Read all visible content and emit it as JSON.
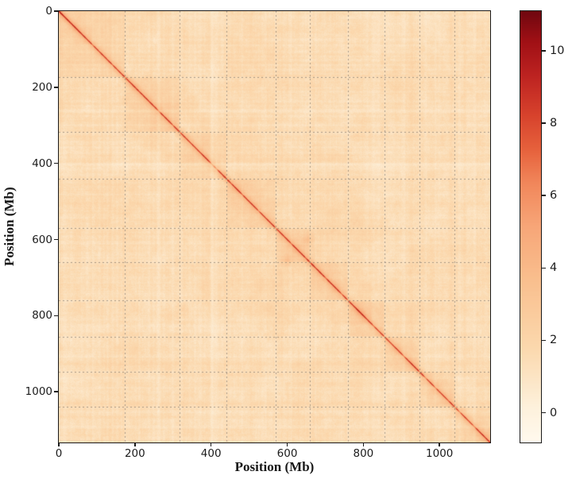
{
  "page": {
    "background": "#ffffff"
  },
  "chart_data": {
    "type": "heatmap",
    "title": "",
    "xlabel": "Position (Mb)",
    "ylabel": "Position (Mb)",
    "x_ticks": [
      0,
      200,
      400,
      600,
      800,
      1000
    ],
    "x_tick_labels": [
      "0",
      "200",
      "400",
      "600",
      "800",
      "1000"
    ],
    "y_ticks": [
      0,
      200,
      400,
      600,
      800,
      1000
    ],
    "y_tick_labels": [
      "0",
      "200",
      "400",
      "600",
      "800",
      "1000"
    ],
    "x_range_mb": [
      0,
      1131
    ],
    "y_range_mb": [
      0,
      1131
    ],
    "y_axis_inverted": true,
    "grid": {
      "shown": true,
      "style": "dashed",
      "color": "#6e645c",
      "alpha": 0.6,
      "at_chromosome_boundaries": true
    },
    "chromosome_boundaries_mb": [
      173,
      317,
      440,
      569,
      659,
      759,
      855,
      947,
      1040
    ],
    "colormap": "Reds",
    "colormap_stops": [
      [
        0.0,
        "#fff9ee"
      ],
      [
        0.08,
        "#fdf1dc"
      ],
      [
        0.22,
        "#fbd8ad"
      ],
      [
        0.38,
        "#f9be8d"
      ],
      [
        0.5,
        "#f7a678"
      ],
      [
        0.6,
        "#f1875b"
      ],
      [
        0.68,
        "#e6613c"
      ],
      [
        0.76,
        "#d7422c"
      ],
      [
        0.85,
        "#bd2321"
      ],
      [
        0.93,
        "#a01015"
      ],
      [
        1.0,
        "#70070f"
      ]
    ],
    "colorbar": {
      "vmin": -0.8,
      "vmax": 11.1,
      "ticks": [
        0,
        2,
        4,
        6,
        8,
        10
      ],
      "tick_labels": [
        "0",
        "2",
        "4",
        "6",
        "8",
        "10"
      ],
      "position": "right"
    },
    "model": {
      "background_mean": 1.95,
      "inter_chromosome_delta": -0.18,
      "distance_fade": 0.35,
      "diagonal": {
        "sharp_amp": 4.8,
        "sharp_sigma_mb": 2.4,
        "mid_amp": 1.5,
        "mid_sigma_mb": 14,
        "broad_amp": 0.85,
        "broad_decay_mb": 60,
        "start_boost_amp": 1.3,
        "start_boost_decay_mb": 55
      },
      "boundary_stripe": {
        "a": 0.2,
        "w": 2.2
      },
      "white_stripes_mb": [
        {
          "pos": 88,
          "w": 3,
          "a": 0.16
        },
        {
          "pos": 140,
          "w": 2.5,
          "a": 0.1
        },
        {
          "pos": 262,
          "w": 4,
          "a": 0.2
        },
        {
          "pos": 299,
          "w": 3,
          "a": 0.13
        },
        {
          "pos": 402,
          "w": 5,
          "a": 0.34
        },
        {
          "pos": 413,
          "w": 4,
          "a": 0.26
        },
        {
          "pos": 452,
          "w": 2.5,
          "a": 0.1
        },
        {
          "pos": 481,
          "w": 3,
          "a": 0.13
        },
        {
          "pos": 524,
          "w": 3,
          "a": 0.15
        },
        {
          "pos": 610,
          "w": 3,
          "a": 0.12
        },
        {
          "pos": 648,
          "w": 2.5,
          "a": 0.1
        },
        {
          "pos": 700,
          "w": 3,
          "a": 0.12
        },
        {
          "pos": 742,
          "w": 3,
          "a": 0.14
        },
        {
          "pos": 826,
          "w": 3,
          "a": 0.12
        },
        {
          "pos": 905,
          "w": 3,
          "a": 0.14
        },
        {
          "pos": 962,
          "w": 4,
          "a": 0.18
        },
        {
          "pos": 988,
          "w": 4,
          "a": 0.2
        },
        {
          "pos": 1022,
          "w": 2.5,
          "a": 0.1
        },
        {
          "pos": 1052,
          "w": 3,
          "a": 0.14
        },
        {
          "pos": 1090,
          "w": 4,
          "a": 0.18
        }
      ],
      "hotspots": [
        {
          "x": 600,
          "y": 656,
          "s": 1.15,
          "w": 14
        },
        {
          "x": 656,
          "y": 600,
          "s": 1.15,
          "w": 14
        },
        {
          "x": 173,
          "y": 173,
          "s": 0.75,
          "w": 10
        },
        {
          "x": 317,
          "y": 317,
          "s": 0.6,
          "w": 9
        },
        {
          "x": 440,
          "y": 440,
          "s": 0.8,
          "w": 10
        },
        {
          "x": 659,
          "y": 659,
          "s": 0.7,
          "w": 10
        },
        {
          "x": 786,
          "y": 786,
          "s": 0.75,
          "w": 12
        },
        {
          "x": 947,
          "y": 947,
          "s": 0.6,
          "w": 10
        },
        {
          "x": 236,
          "y": 172,
          "s": 0.5,
          "w": 11
        },
        {
          "x": 172,
          "y": 236,
          "s": 0.5,
          "w": 11
        },
        {
          "x": 352,
          "y": 310,
          "s": 0.45,
          "w": 9
        },
        {
          "x": 310,
          "y": 352,
          "s": 0.45,
          "w": 9
        }
      ]
    }
  }
}
